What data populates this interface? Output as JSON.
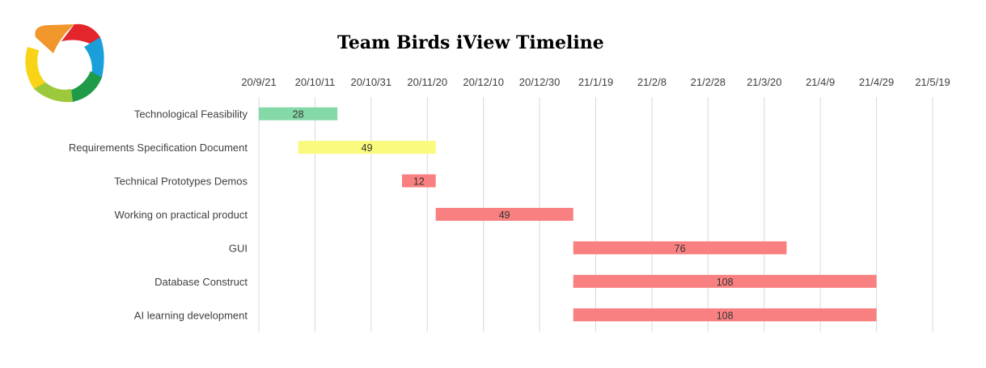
{
  "chart_data": {
    "type": "bar",
    "title": "Team Birds iView Timeline",
    "xlabel": "",
    "ylabel": "",
    "x_axis_position": "top",
    "grid": true,
    "xlim_days": [
      0,
      240
    ],
    "tick_labels": [
      "20/9/21",
      "20/10/11",
      "20/10/31",
      "20/11/20",
      "20/12/10",
      "20/12/30",
      "21/1/19",
      "21/2/8",
      "21/2/28",
      "21/3/20",
      "21/4/9",
      "21/4/29",
      "21/5/19"
    ],
    "categories": [
      "Technological Feasibility",
      "Requirements Specification Document",
      "Technical Prototypes Demos",
      "Working on practical product",
      "GUI",
      "Database Construct",
      "AI learning development"
    ],
    "series": [
      {
        "start_day": [
          0,
          14,
          51,
          63,
          112,
          112,
          112
        ],
        "values": [
          28,
          49,
          12,
          49,
          76,
          108,
          108
        ],
        "colors": [
          "#85D9A8",
          "#FAFA7E",
          "#F98080",
          "#F98080",
          "#F98080",
          "#F98080",
          "#F98080"
        ]
      }
    ]
  }
}
